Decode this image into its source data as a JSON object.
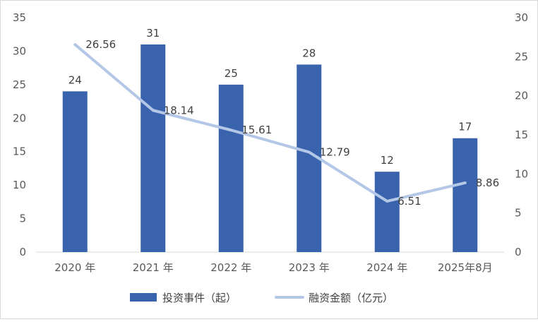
{
  "chart_data": {
    "type": "bar+line",
    "title": "",
    "categories": [
      "2020 年",
      "2021 年",
      "2022 年",
      "2023 年",
      "2024 年",
      "2025年8月"
    ],
    "series": [
      {
        "name": "投资事件（起）",
        "type": "bar",
        "axis": "left",
        "color": "#3A63AE",
        "values": [
          24,
          31,
          25,
          28,
          12,
          17
        ],
        "labels": [
          "24",
          "31",
          "25",
          "28",
          "12",
          "17"
        ]
      },
      {
        "name": "融资金额（亿元）",
        "type": "line",
        "axis": "right",
        "color": "#B4C7E7",
        "values": [
          26.56,
          18.14,
          15.61,
          12.79,
          6.51,
          8.86
        ],
        "labels": [
          "26.56",
          "18.14",
          "15.61",
          "12.79",
          "6.51",
          "8.86"
        ]
      }
    ],
    "y_left": {
      "min": 0,
      "max": 35,
      "step": 5,
      "ticks": [
        "0",
        "5",
        "10",
        "15",
        "20",
        "25",
        "30",
        "35"
      ]
    },
    "y_right": {
      "min": 0,
      "max": 30,
      "step": 5,
      "ticks": [
        "0",
        "5",
        "10",
        "15",
        "20",
        "25",
        "30"
      ]
    },
    "grid": false,
    "legend_position": "bottom"
  }
}
